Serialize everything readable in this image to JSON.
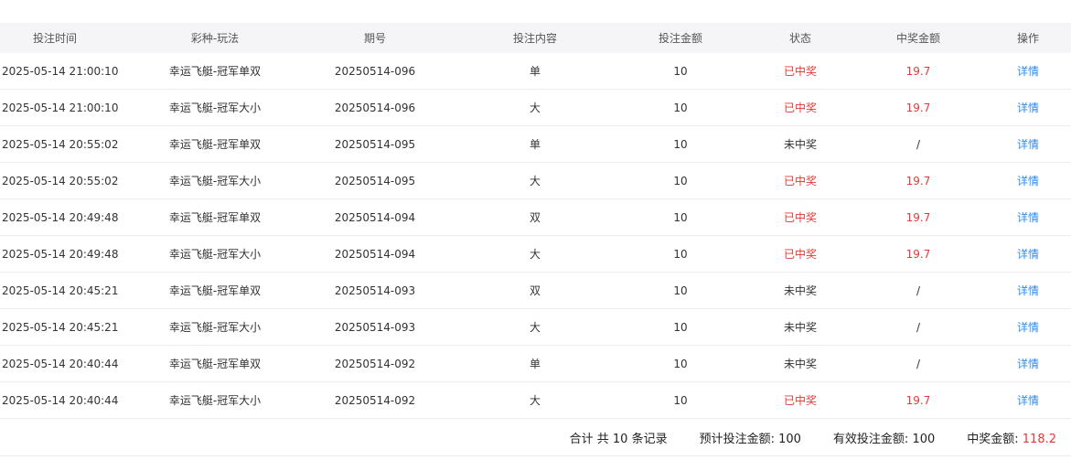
{
  "headers": [
    "投注时间",
    "彩种-玩法",
    "期号",
    "投注内容",
    "投注金额",
    "状态",
    "中奖金额",
    "操作"
  ],
  "rows": [
    {
      "time": "2025-05-14 21:00:10",
      "game": "幸运飞艇-冠军单双",
      "issue": "20250514-096",
      "content": "单",
      "amount": "10",
      "status": "已中奖",
      "win": "19.7",
      "action": "详情",
      "won": true
    },
    {
      "time": "2025-05-14 21:00:10",
      "game": "幸运飞艇-冠军大小",
      "issue": "20250514-096",
      "content": "大",
      "amount": "10",
      "status": "已中奖",
      "win": "19.7",
      "action": "详情",
      "won": true
    },
    {
      "time": "2025-05-14 20:55:02",
      "game": "幸运飞艇-冠军单双",
      "issue": "20250514-095",
      "content": "单",
      "amount": "10",
      "status": "未中奖",
      "win": "/",
      "action": "详情",
      "won": false
    },
    {
      "time": "2025-05-14 20:55:02",
      "game": "幸运飞艇-冠军大小",
      "issue": "20250514-095",
      "content": "大",
      "amount": "10",
      "status": "已中奖",
      "win": "19.7",
      "action": "详情",
      "won": true
    },
    {
      "time": "2025-05-14 20:49:48",
      "game": "幸运飞艇-冠军单双",
      "issue": "20250514-094",
      "content": "双",
      "amount": "10",
      "status": "已中奖",
      "win": "19.7",
      "action": "详情",
      "won": true
    },
    {
      "time": "2025-05-14 20:49:48",
      "game": "幸运飞艇-冠军大小",
      "issue": "20250514-094",
      "content": "大",
      "amount": "10",
      "status": "已中奖",
      "win": "19.7",
      "action": "详情",
      "won": true
    },
    {
      "time": "2025-05-14 20:45:21",
      "game": "幸运飞艇-冠军单双",
      "issue": "20250514-093",
      "content": "双",
      "amount": "10",
      "status": "未中奖",
      "win": "/",
      "action": "详情",
      "won": false
    },
    {
      "time": "2025-05-14 20:45:21",
      "game": "幸运飞艇-冠军大小",
      "issue": "20250514-093",
      "content": "大",
      "amount": "10",
      "status": "未中奖",
      "win": "/",
      "action": "详情",
      "won": false
    },
    {
      "time": "2025-05-14 20:40:44",
      "game": "幸运飞艇-冠军单双",
      "issue": "20250514-092",
      "content": "单",
      "amount": "10",
      "status": "未中奖",
      "win": "/",
      "action": "详情",
      "won": false
    },
    {
      "time": "2025-05-14 20:40:44",
      "game": "幸运飞艇-冠军大小",
      "issue": "20250514-092",
      "content": "大",
      "amount": "10",
      "status": "已中奖",
      "win": "19.7",
      "action": "详情",
      "won": true
    }
  ],
  "footer": {
    "total": "合计 共 10 条记录",
    "expected_label": "预计投注金额: ",
    "expected_value": "100",
    "valid_label": "有效投注金额: ",
    "valid_value": "100",
    "win_label": "中奖金额: ",
    "win_value": "118.2"
  },
  "colors": {
    "win": "#e53935",
    "link": "#2d8cf0",
    "header_bg": "#f5f5f7"
  }
}
